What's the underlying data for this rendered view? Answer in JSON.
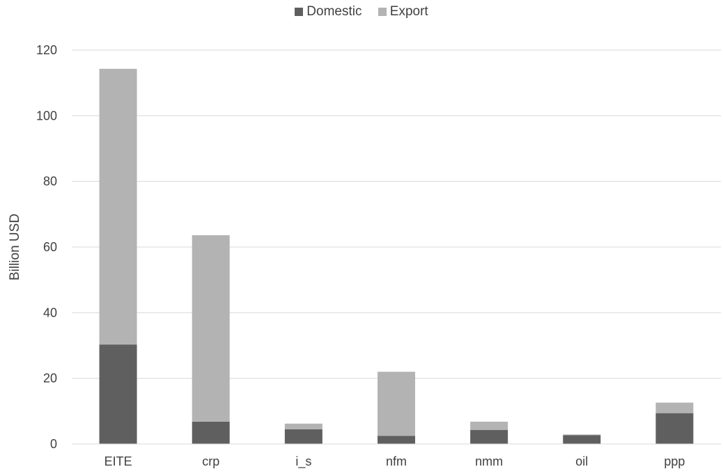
{
  "chart_data": {
    "type": "bar",
    "stacked": true,
    "categories": [
      "EITE",
      "crp",
      "i_s",
      "nfm",
      "nmm",
      "oil",
      "ppp"
    ],
    "series": [
      {
        "name": "Domestic",
        "color": "#5f5f5f",
        "values": [
          30.3,
          6.8,
          4.5,
          2.5,
          4.3,
          2.7,
          9.4
        ]
      },
      {
        "name": "Export",
        "color": "#b3b3b3",
        "values": [
          84.0,
          56.8,
          1.7,
          19.5,
          2.5,
          0.2,
          3.2
        ]
      }
    ],
    "ylabel": "Billion USD",
    "xlabel": "",
    "ylim": [
      0,
      120
    ],
    "yticks": [
      0,
      20,
      40,
      60,
      80,
      100,
      120
    ],
    "grid": true,
    "legend_position": "top-center"
  }
}
